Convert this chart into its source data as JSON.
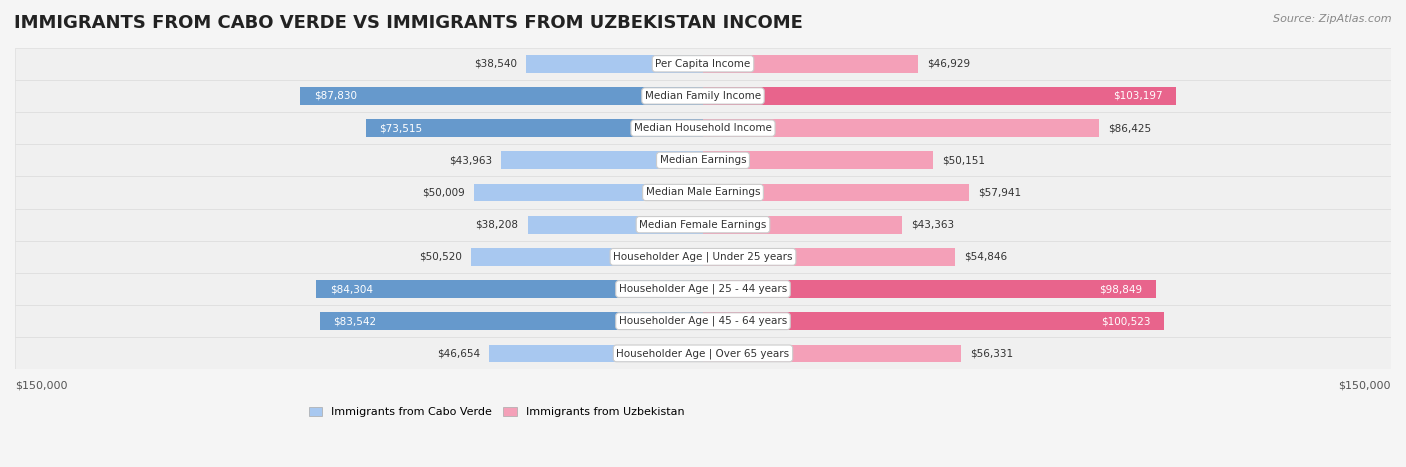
{
  "title": "IMMIGRANTS FROM CABO VERDE VS IMMIGRANTS FROM UZBEKISTAN INCOME",
  "source": "Source: ZipAtlas.com",
  "categories": [
    "Per Capita Income",
    "Median Family Income",
    "Median Household Income",
    "Median Earnings",
    "Median Male Earnings",
    "Median Female Earnings",
    "Householder Age | Under 25 years",
    "Householder Age | 25 - 44 years",
    "Householder Age | 45 - 64 years",
    "Householder Age | Over 65 years"
  ],
  "cabo_verde_values": [
    38540,
    87830,
    73515,
    43963,
    50009,
    38208,
    50520,
    84304,
    83542,
    46654
  ],
  "uzbekistan_values": [
    46929,
    103197,
    86425,
    50151,
    57941,
    43363,
    54846,
    98849,
    100523,
    56331
  ],
  "cabo_verde_color_light": "#a8c8f0",
  "cabo_verde_color_dark": "#6699cc",
  "uzbekistan_color_light": "#f4a0b8",
  "uzbekistan_color_dark": "#e8648c",
  "max_value": 150000,
  "background_color": "#f5f5f5",
  "row_bg_color": "#ffffff",
  "label_bg_color": "#ffffff",
  "cabo_verde_large_threshold": 70000,
  "uzbekistan_large_threshold": 90000
}
